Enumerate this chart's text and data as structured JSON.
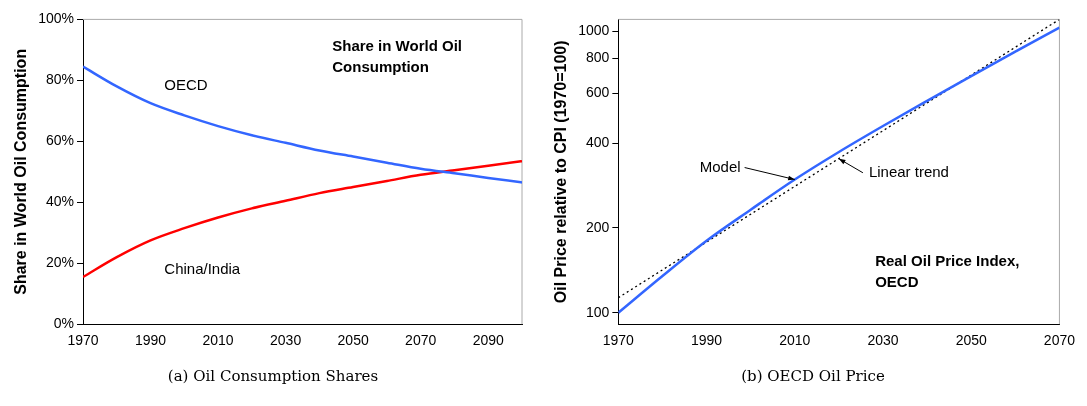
{
  "chart_data": [
    {
      "type": "line",
      "title": "Share in World Oil Consumption",
      "ylabel": "Share in World Oil Consumption",
      "annotations": [
        "(a) Oil Consumption Shares"
      ],
      "x": [
        1970,
        1980,
        1990,
        2000,
        2010,
        2020,
        2030,
        2040,
        2050,
        2060,
        2070,
        2080,
        2090,
        2100
      ],
      "xlim": [
        1970,
        2100
      ],
      "xticks": [
        1970,
        1990,
        2010,
        2030,
        2050,
        2070,
        2090
      ],
      "ylim": [
        0,
        100
      ],
      "yticks": [
        {
          "value": 0,
          "label": "0%"
        },
        {
          "value": 20,
          "label": "20%"
        },
        {
          "value": 40,
          "label": "40%"
        },
        {
          "value": 60,
          "label": "60%"
        },
        {
          "value": 80,
          "label": "80%"
        },
        {
          "value": 100,
          "label": "100%"
        }
      ],
      "grid": false,
      "legend": false,
      "marker": "none",
      "line_style": "solid",
      "series": [
        {
          "name": "OECD",
          "color": "#3366ff",
          "values": [
            84.5,
            78,
            72.5,
            68.5,
            65,
            62,
            59.5,
            57,
            55,
            53,
            51,
            49.5,
            48,
            46.5
          ]
        },
        {
          "name": "China/India",
          "color": "#ff0000",
          "values": [
            15.5,
            22,
            27.5,
            31.5,
            35,
            38,
            40.5,
            43,
            45,
            47,
            49,
            50.5,
            52,
            53.5
          ]
        }
      ]
    },
    {
      "type": "line",
      "title": "Real Oil Price Index, OECD",
      "ylabel": "Oil Price relative to CPI (1970=100)",
      "annotations": [
        {
          "text": "Model",
          "x": 2010,
          "y": 297
        },
        {
          "text": "Linear trend",
          "x": 2020,
          "y": 352
        },
        "(b) OECD Oil Price"
      ],
      "x": [
        1970,
        1980,
        1990,
        2000,
        2010,
        2020,
        2030,
        2040,
        2050,
        2060,
        2070
      ],
      "xlim": [
        1970,
        2070
      ],
      "xticks": [
        1970,
        1990,
        2010,
        2030,
        2050,
        2070
      ],
      "ylim": [
        91,
        1100
      ],
      "yticks": [
        100,
        200,
        400,
        600,
        800,
        1000
      ],
      "log": "y",
      "grid": false,
      "legend": false,
      "marker": "none",
      "series": [
        {
          "color": "#3366ff",
          "line_style": "solid",
          "values": [
            100,
            135,
            180,
            232,
            297,
            372,
            460,
            565,
            692,
            845,
            1028
          ]
        },
        {
          "type": "line",
          "color": "#000000",
          "line_style": "dotted",
          "x": [
            1970,
            2070
          ],
          "values": [
            113,
            1100
          ]
        }
      ]
    }
  ]
}
